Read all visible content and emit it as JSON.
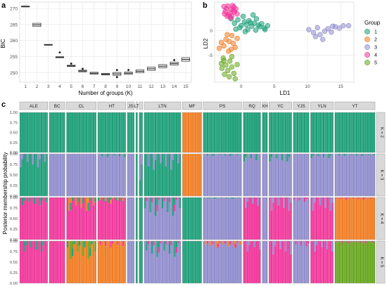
{
  "colors": {
    "g1": "#1b9e77",
    "g2": "#f07c22",
    "g3": "#8f8ccc",
    "g4": "#f0359a",
    "g5": "#66a61e",
    "panel_bg": "#ffffff",
    "grid": "#e6e6e6",
    "strip_bg": "#d9d9d9"
  },
  "chart_data": [
    {
      "panel": "a",
      "type": "boxplot",
      "panel_label": "a",
      "xlabel": "Number of groups (K)",
      "ylabel": "BIC",
      "ylim": [
        247,
        272
      ],
      "y_ticks": [
        250,
        255,
        260,
        265,
        270
      ],
      "x_categories": [
        "1",
        "2",
        "3",
        "4",
        "5",
        "6",
        "7",
        "8",
        "9",
        "10",
        "11",
        "12",
        "13",
        "14",
        "15"
      ],
      "medians": [
        270.7,
        264.9,
        258.7,
        254.8,
        252.1,
        250.5,
        249.8,
        249.5,
        249.6,
        249.8,
        250.4,
        251.2,
        252.0,
        252.8,
        254.1
      ],
      "box_half_height": [
        0.05,
        0.5,
        0.1,
        0.15,
        0.2,
        0.25,
        0.3,
        0.25,
        0.45,
        0.35,
        0.45,
        0.5,
        0.5,
        0.45,
        0.55
      ],
      "outliers": [
        [
          4,
          256.3
        ],
        [
          5,
          252.8
        ],
        [
          6,
          251.2
        ],
        [
          9,
          248.6
        ],
        [
          9,
          250.8
        ],
        [
          10,
          250.8
        ],
        [
          14,
          253.9
        ]
      ]
    },
    {
      "panel": "b",
      "type": "scatter",
      "panel_label": "b",
      "xlabel": "LD1",
      "ylabel": "LD2",
      "xlim": [
        -4,
        17
      ],
      "ylim": [
        -10.5,
        5.8
      ],
      "x_ticks": [
        0,
        5,
        10,
        15
      ],
      "y_ticks": [
        -5,
        0
      ],
      "legend_title": "Group",
      "legend_position": "right",
      "series": [
        {
          "name": "1",
          "points": [
            [
              0.5,
              1.8
            ],
            [
              1.2,
              2.0
            ],
            [
              2.0,
              1.5
            ],
            [
              2.8,
              0.8
            ],
            [
              0.0,
              1.0
            ],
            [
              -0.5,
              2.2
            ],
            [
              1.6,
              0.9
            ],
            [
              3.5,
              0.5
            ],
            [
              0.8,
              1.2
            ],
            [
              2.3,
              2.4
            ],
            [
              -0.2,
              0.6
            ],
            [
              1.0,
              0.2
            ],
            [
              2.6,
              1.1
            ],
            [
              -1.0,
              1.5
            ],
            [
              3.1,
              1.4
            ],
            [
              0.3,
              2.9
            ],
            [
              1.8,
              3.2
            ],
            [
              -1.5,
              2.4
            ],
            [
              0.6,
              -0.2
            ],
            [
              2.2,
              0.1
            ],
            [
              4.0,
              1.0
            ],
            [
              1.4,
              1.6
            ],
            [
              -0.8,
              0.3
            ],
            [
              3.6,
              0.2
            ]
          ]
        },
        {
          "name": "2",
          "points": [
            [
              -1.4,
              -1.0
            ],
            [
              -2.3,
              -1.8
            ],
            [
              -3.0,
              -2.4
            ],
            [
              -1.2,
              -2.6
            ],
            [
              -2.6,
              -3.1
            ],
            [
              -1.8,
              -2.2
            ],
            [
              -0.6,
              -1.6
            ],
            [
              -3.3,
              -3.6
            ],
            [
              -1.9,
              -4.2
            ],
            [
              -0.9,
              -3.4
            ],
            [
              -2.1,
              -0.8
            ],
            [
              -1.5,
              -3.8
            ]
          ]
        },
        {
          "name": "3",
          "points": [
            [
              10.2,
              0.2
            ],
            [
              10.9,
              -0.4
            ],
            [
              11.5,
              0.6
            ],
            [
              11.9,
              -0.8
            ],
            [
              12.6,
              -0.1
            ],
            [
              13.1,
              0.4
            ],
            [
              13.6,
              -0.3
            ],
            [
              14.2,
              0.8
            ],
            [
              14.8,
              0.5
            ],
            [
              15.4,
              1.0
            ],
            [
              16.2,
              1.0
            ],
            [
              11.2,
              -1.2
            ],
            [
              12.3,
              -1.8
            ],
            [
              13.8,
              0.9
            ]
          ]
        },
        {
          "name": "4",
          "points": [
            [
              -2.0,
              5.0
            ],
            [
              -1.5,
              4.3
            ],
            [
              -1.1,
              4.8
            ],
            [
              -2.4,
              3.9
            ],
            [
              -1.7,
              3.5
            ],
            [
              -1.0,
              3.8
            ],
            [
              -2.2,
              4.5
            ],
            [
              -1.3,
              5.1
            ],
            [
              -2.6,
              4.9
            ],
            [
              -1.9,
              3.2
            ],
            [
              -1.4,
              3.0
            ],
            [
              -0.8,
              4.4
            ],
            [
              -2.5,
              3.4
            ],
            [
              -1.2,
              4.1
            ],
            [
              -0.6,
              3.4
            ],
            [
              -1.6,
              2.6
            ],
            [
              -2.1,
              2.9
            ]
          ]
        },
        {
          "name": "5",
          "points": [
            [
              -2.7,
              -5.6
            ],
            [
              -3.0,
              -6.7
            ],
            [
              -2.3,
              -7.0
            ],
            [
              -1.7,
              -6.2
            ],
            [
              -2.9,
              -7.7
            ],
            [
              -1.4,
              -7.4
            ],
            [
              -2.0,
              -8.1
            ],
            [
              -1.1,
              -8.7
            ],
            [
              -1.8,
              -9.4
            ],
            [
              -2.5,
              -8.9
            ],
            [
              -0.9,
              -9.8
            ],
            [
              -1.4,
              -5.3
            ],
            [
              -0.6,
              -6.9
            ],
            [
              -2.6,
              -6.1
            ]
          ]
        }
      ]
    },
    {
      "panel": "c",
      "type": "stacked_bar",
      "panel_label": "c",
      "ylabel": "Posterior membership probability",
      "y_ticks": [
        "0.00",
        "0.25",
        "0.50",
        "0.75",
        "1.00"
      ],
      "populations": [
        {
          "name": "ALE",
          "n": 16
        },
        {
          "name": "BC",
          "n": 9
        },
        {
          "name": "CL",
          "n": 17
        },
        {
          "name": "HT",
          "n": 16
        },
        {
          "name": "JS",
          "n": 4
        },
        {
          "name": "LT",
          "n": 1
        },
        {
          "name": "",
          "n": 2
        },
        {
          "name": "LTN",
          "n": 21
        },
        {
          "name": "MF",
          "n": 11
        },
        {
          "name": "PS",
          "n": 22
        },
        {
          "name": "RQ",
          "n": 10
        },
        {
          "name": "XH",
          "n": 3
        },
        {
          "name": "YC",
          "n": 13
        },
        {
          "name": "YJS",
          "n": 9
        },
        {
          "name": "YLN",
          "n": 13
        },
        {
          "name": "YT",
          "n": 23
        }
      ],
      "k_panels": [
        {
          "label": "K = 2",
          "base": [
            "g1",
            "g1",
            "g1",
            "g1",
            "g1",
            "g1",
            "g1",
            "g1",
            "g2",
            "g1",
            "g1",
            "g1",
            "g1",
            "g1",
            "g1",
            "g1"
          ],
          "mix": []
        },
        {
          "label": "K = 3",
          "base": [
            "g1",
            "g3",
            "g3",
            "g3",
            "g3",
            "g1",
            "g1",
            "g1",
            "g2",
            "g3",
            "g3",
            "g3",
            "g3",
            "g3",
            "g3",
            "g3"
          ],
          "mix": [
            [
              0,
              "g3",
              0.25
            ],
            [
              3,
              "g1",
              0.06
            ],
            [
              6,
              "g3",
              0.5
            ],
            [
              7,
              "g3",
              0.3
            ],
            [
              9,
              "g1",
              0.04
            ],
            [
              10,
              "g1",
              0.15
            ],
            [
              12,
              "g1",
              0.15
            ],
            [
              14,
              "g1",
              0.08
            ],
            [
              15,
              "g1",
              0.04
            ]
          ]
        },
        {
          "label": "K = 4",
          "base": [
            "g4",
            "g4",
            "g4",
            "g4",
            "g3",
            "g1",
            "g1",
            "g3",
            "g1",
            "g3",
            "g4",
            "g3",
            "g4",
            "g3",
            "g4",
            "g2"
          ],
          "mix": [
            [
              0,
              "g1",
              0.15
            ],
            [
              2,
              "g2",
              0.25
            ],
            [
              2,
              "g1",
              0.15
            ],
            [
              3,
              "g1",
              0.1
            ],
            [
              3,
              "g2",
              0.08
            ],
            [
              7,
              "g1",
              0.35
            ],
            [
              7,
              "g4",
              0.12
            ],
            [
              9,
              "g1",
              0.03
            ],
            [
              10,
              "g3",
              0.2
            ],
            [
              12,
              "g3",
              0.25
            ],
            [
              13,
              "g4",
              0.08
            ],
            [
              14,
              "g3",
              0.25
            ],
            [
              15,
              "g4",
              0.04
            ]
          ]
        },
        {
          "label": "K = 5",
          "base": [
            "g4",
            "g4",
            "g2",
            "g2",
            "g3",
            "g1",
            "g1",
            "g3",
            "g1",
            "g3",
            "g4",
            "g3",
            "g4",
            "g3",
            "g4",
            "g5"
          ],
          "mix": [
            [
              0,
              "g1",
              0.2
            ],
            [
              2,
              "g5",
              0.35
            ],
            [
              2,
              "g1",
              0.15
            ],
            [
              3,
              "g4",
              0.12
            ],
            [
              7,
              "g1",
              0.3
            ],
            [
              7,
              "g4",
              0.1
            ],
            [
              9,
              "g2",
              0.12
            ],
            [
              9,
              "g4",
              0.08
            ],
            [
              10,
              "g3",
              0.2
            ],
            [
              12,
              "g3",
              0.25
            ],
            [
              13,
              "g4",
              0.1
            ],
            [
              14,
              "g3",
              0.2
            ],
            [
              15,
              "g4",
              0.05
            ]
          ]
        }
      ]
    }
  ]
}
